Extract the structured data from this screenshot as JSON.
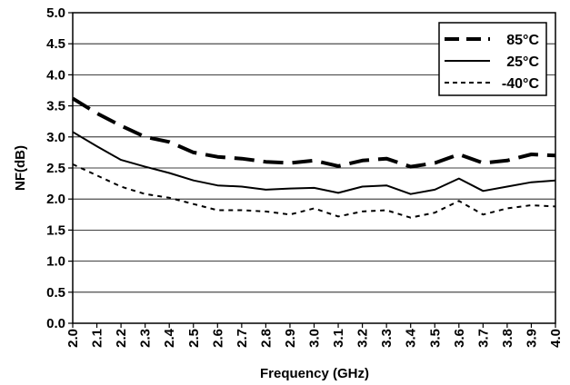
{
  "chart_data": {
    "type": "line",
    "xlabel": "Frequency (GHz)",
    "ylabel": "NF(dB)",
    "x": [
      2.0,
      2.1,
      2.2,
      2.3,
      2.4,
      2.5,
      2.6,
      2.7,
      2.8,
      2.9,
      3.0,
      3.1,
      3.2,
      3.3,
      3.4,
      3.5,
      3.6,
      3.7,
      3.8,
      3.9,
      4.0
    ],
    "x_tick_labels": [
      "2.0",
      "2.1",
      "2.2",
      "2.3",
      "2.4",
      "2.5",
      "2.6",
      "2.7",
      "2.8",
      "2.9",
      "3.0",
      "3.1",
      "3.2",
      "3.3",
      "3.4",
      "3.5",
      "3.6",
      "3.7",
      "3.8",
      "3.9",
      "4.0"
    ],
    "y_tick_labels": [
      "0.0",
      "0.5",
      "1.0",
      "1.5",
      "2.0",
      "2.5",
      "3.0",
      "3.5",
      "4.0",
      "4.5",
      "5.0"
    ],
    "xlim": [
      2.0,
      4.0
    ],
    "ylim": [
      0.0,
      5.0
    ],
    "grid": "horizontal",
    "legend_position": "top-right",
    "series": [
      {
        "name": "85°C",
        "style": "long-dash",
        "color": "#000000",
        "values": [
          3.62,
          3.38,
          3.18,
          3.0,
          2.92,
          2.75,
          2.68,
          2.65,
          2.6,
          2.58,
          2.62,
          2.53,
          2.62,
          2.65,
          2.52,
          2.58,
          2.72,
          2.58,
          2.62,
          2.72,
          2.7
        ]
      },
      {
        "name": "25°C",
        "style": "solid",
        "color": "#000000",
        "values": [
          3.08,
          2.85,
          2.63,
          2.52,
          2.42,
          2.3,
          2.22,
          2.2,
          2.15,
          2.17,
          2.18,
          2.1,
          2.2,
          2.22,
          2.08,
          2.15,
          2.33,
          2.13,
          2.2,
          2.27,
          2.3
        ]
      },
      {
        "name": "-40°C",
        "style": "short-dash",
        "color": "#000000",
        "values": [
          2.56,
          2.38,
          2.2,
          2.08,
          2.02,
          1.92,
          1.82,
          1.82,
          1.8,
          1.75,
          1.85,
          1.72,
          1.8,
          1.82,
          1.7,
          1.78,
          1.97,
          1.75,
          1.85,
          1.9,
          1.88
        ]
      }
    ]
  }
}
